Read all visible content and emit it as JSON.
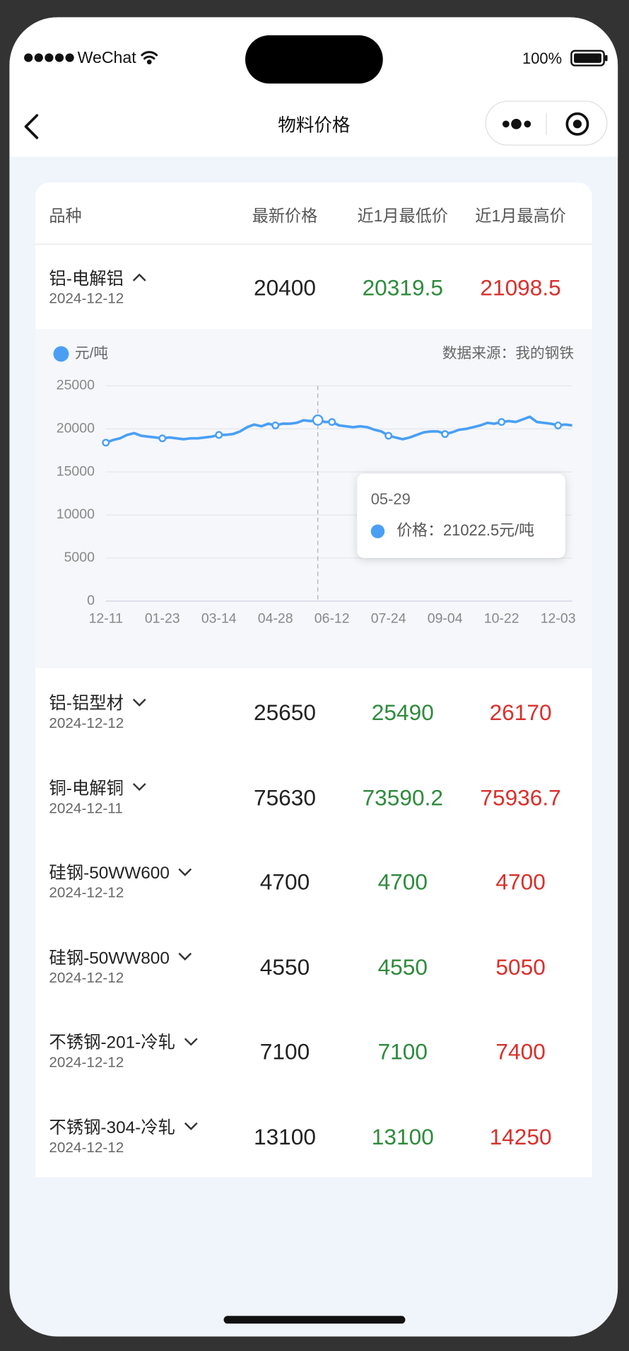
{
  "status_bar": {
    "carrier": "WeChat",
    "battery": "100%"
  },
  "nav": {
    "title": "物料价格"
  },
  "table": {
    "headers": [
      "品种",
      "最新价格",
      "近1月最低价",
      "近1月最高价"
    ],
    "rows": [
      {
        "name": "铝-电解铝",
        "date": "2024-12-12",
        "latest": 20400,
        "low": 20319.5,
        "high": 21098.5
      },
      {
        "name": "铝-铝型材",
        "date": "2024-12-12",
        "latest": 25650,
        "low": 25490,
        "high": 26170
      },
      {
        "name": "铜-电解铜",
        "date": "2024-12-11",
        "latest": 75630,
        "low": 73590.2,
        "high": 75936.7
      },
      {
        "name": "硅钢-50WW600",
        "date": "2024-12-12",
        "latest": 4700,
        "low": 4700,
        "high": 4700
      },
      {
        "name": "硅钢-50WW800",
        "date": "2024-12-12",
        "latest": 4550,
        "low": 4550,
        "high": 5050
      },
      {
        "name": "不锈钢-201-冷轧",
        "date": "2024-12-12",
        "latest": 7100,
        "low": 7100,
        "high": 7400
      },
      {
        "name": "不锈钢-304-冷轧",
        "date": "2024-12-12",
        "latest": 13100,
        "low": 13100,
        "high": 14250
      }
    ]
  },
  "chart_data": {
    "type": "line",
    "source": "数据来源：我的钢铁",
    "categories": [
      "12-11",
      null,
      null,
      null,
      null,
      null,
      null,
      null,
      "01-23",
      null,
      null,
      null,
      null,
      null,
      null,
      null,
      "03-14",
      null,
      null,
      null,
      null,
      null,
      null,
      null,
      "04-28",
      null,
      null,
      null,
      null,
      null,
      null,
      null,
      "06-12",
      null,
      null,
      null,
      null,
      null,
      null,
      null,
      "07-24",
      null,
      null,
      null,
      null,
      null,
      null,
      null,
      "09-04",
      null,
      null,
      null,
      null,
      null,
      null,
      null,
      "10-22",
      null,
      null,
      null,
      null,
      null,
      null,
      null,
      "12-03",
      null,
      null
    ],
    "series": [
      {
        "name": "元/吨",
        "color": "#4a9ff5",
        "values": [
          18400,
          18700,
          18900,
          19300,
          19500,
          19200,
          19100,
          19000,
          18900,
          19000,
          18900,
          18800,
          18900,
          18900,
          19000,
          19100,
          19300,
          19300,
          19400,
          19700,
          20200,
          20500,
          20300,
          20600,
          20400,
          20600,
          20600,
          20700,
          21000,
          20900,
          21022.5,
          20800,
          20800,
          20400,
          20300,
          20200,
          20300,
          20200,
          19900,
          19700,
          19200,
          19000,
          18800,
          19000,
          19300,
          19600,
          19700,
          19700,
          19400,
          19600,
          19900,
          20000,
          20200,
          20400,
          20700,
          20600,
          20800,
          20900,
          20800,
          21100,
          21400,
          20800,
          20700,
          20600,
          20400,
          20500,
          20400
        ]
      }
    ],
    "ylim": [
      0,
      25000
    ],
    "yticks": [
      0,
      5000,
      10000,
      15000,
      20000,
      25000
    ],
    "grid": true,
    "tooltip": {
      "title": "05-29",
      "label": "价格：",
      "value": 21022.5,
      "unit": "元/吨"
    }
  }
}
